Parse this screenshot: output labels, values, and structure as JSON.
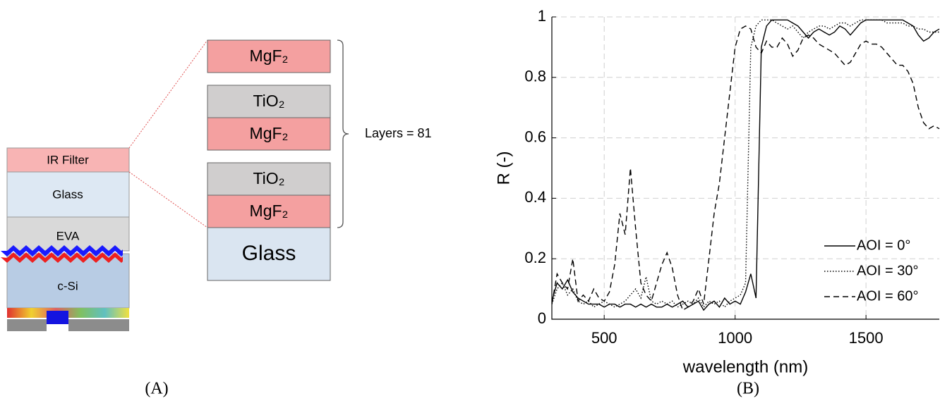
{
  "diagram": {
    "cell_layers": [
      "IR Filter",
      "Glass",
      "EVA",
      "c-Si"
    ],
    "filter_layers": [
      "MgF₂",
      "TiO₂",
      "MgF₂",
      "TiO₂",
      "MgF₂",
      "Glass"
    ],
    "brace_label": "Layers = 81",
    "panel_label": "(A)"
  },
  "chart_data": {
    "type": "line",
    "x_label": "wavelength (nm)",
    "y_label": "R (-)",
    "panel_label": "(B)",
    "xlim": [
      300,
      1780
    ],
    "ylim": [
      0,
      1
    ],
    "xticks": [
      500,
      1000,
      1500
    ],
    "yticks": [
      0,
      0.2,
      0.4,
      0.6,
      0.8,
      1
    ],
    "grid": true,
    "legend": "lower right",
    "x": [
      300,
      320,
      340,
      360,
      380,
      400,
      420,
      440,
      460,
      480,
      500,
      520,
      540,
      560,
      580,
      600,
      620,
      640,
      660,
      680,
      700,
      720,
      740,
      760,
      780,
      800,
      820,
      840,
      860,
      880,
      900,
      920,
      940,
      960,
      980,
      1000,
      1020,
      1040,
      1060,
      1080,
      1100,
      1120,
      1140,
      1160,
      1180,
      1200,
      1220,
      1240,
      1260,
      1280,
      1300,
      1320,
      1340,
      1360,
      1380,
      1400,
      1420,
      1440,
      1460,
      1480,
      1500,
      1520,
      1540,
      1560,
      1580,
      1600,
      1620,
      1640,
      1660,
      1680,
      1700,
      1720,
      1740,
      1760,
      1780
    ],
    "series": [
      {
        "name": "AOI = 0°",
        "color": "#000000",
        "style": "solid",
        "values": [
          0.06,
          0.12,
          0.1,
          0.13,
          0.09,
          0.07,
          0.06,
          0.05,
          0.05,
          0.05,
          0.04,
          0.05,
          0.05,
          0.04,
          0.05,
          0.05,
          0.04,
          0.05,
          0.04,
          0.05,
          0.04,
          0.04,
          0.05,
          0.04,
          0.05,
          0.06,
          0.04,
          0.05,
          0.06,
          0.03,
          0.05,
          0.06,
          0.04,
          0.07,
          0.05,
          0.06,
          0.05,
          0.09,
          0.15,
          0.07,
          0.9,
          0.97,
          0.99,
          0.99,
          0.99,
          0.99,
          0.98,
          0.97,
          0.95,
          0.93,
          0.95,
          0.96,
          0.95,
          0.94,
          0.95,
          0.97,
          0.96,
          0.94,
          0.96,
          0.98,
          0.99,
          0.99,
          0.99,
          0.99,
          0.99,
          0.99,
          0.99,
          0.99,
          0.98,
          0.97,
          0.94,
          0.92,
          0.93,
          0.95,
          0.96
        ]
      },
      {
        "name": "AOI = 30°",
        "color": "#000000",
        "style": "dotted",
        "values": [
          0.05,
          0.1,
          0.12,
          0.08,
          0.1,
          0.06,
          0.05,
          0.06,
          0.04,
          0.05,
          0.06,
          0.05,
          0.04,
          0.05,
          0.06,
          0.08,
          0.1,
          0.07,
          0.14,
          0.06,
          0.05,
          0.06,
          0.05,
          0.06,
          0.04,
          0.05,
          0.06,
          0.05,
          0.07,
          0.04,
          0.06,
          0.05,
          0.06,
          0.04,
          0.06,
          0.07,
          0.08,
          0.12,
          0.9,
          0.97,
          0.99,
          0.99,
          0.99,
          0.98,
          0.97,
          0.96,
          0.97,
          0.95,
          0.93,
          0.95,
          0.96,
          0.97,
          0.97,
          0.96,
          0.97,
          0.98,
          0.98,
          0.97,
          0.98,
          0.99,
          0.99,
          0.99,
          0.99,
          0.99,
          0.98,
          0.98,
          0.98,
          0.98,
          0.97,
          0.97,
          0.96,
          0.96,
          0.95,
          0.95,
          0.95
        ]
      },
      {
        "name": "AOI = 60°",
        "color": "#000000",
        "style": "dashed",
        "values": [
          0.05,
          0.15,
          0.12,
          0.1,
          0.2,
          0.06,
          0.08,
          0.06,
          0.1,
          0.07,
          0.06,
          0.09,
          0.18,
          0.35,
          0.28,
          0.5,
          0.3,
          0.12,
          0.08,
          0.06,
          0.12,
          0.18,
          0.22,
          0.17,
          0.08,
          0.03,
          0.04,
          0.06,
          0.1,
          0.05,
          0.2,
          0.35,
          0.45,
          0.6,
          0.75,
          0.9,
          0.96,
          0.97,
          0.96,
          0.9,
          0.88,
          0.92,
          0.9,
          0.9,
          0.93,
          0.91,
          0.87,
          0.89,
          0.93,
          0.94,
          0.93,
          0.91,
          0.9,
          0.89,
          0.88,
          0.86,
          0.84,
          0.85,
          0.88,
          0.91,
          0.92,
          0.91,
          0.91,
          0.9,
          0.88,
          0.86,
          0.84,
          0.84,
          0.82,
          0.78,
          0.7,
          0.65,
          0.63,
          0.64,
          0.63
        ]
      }
    ]
  }
}
